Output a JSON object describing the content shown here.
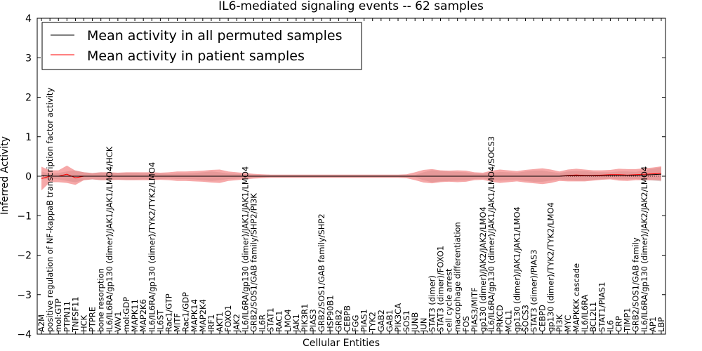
{
  "chart_data": {
    "type": "line",
    "title": "IL6-mediated signaling events -- 62 samples",
    "xlabel": "Cellular Entities",
    "ylabel": "Inferred Activity",
    "ylim": [
      -4,
      4
    ],
    "yticks": [
      -4,
      -3,
      -2,
      -1,
      0,
      1,
      2,
      3,
      4
    ],
    "ytick_labels": [
      "−4",
      "−3",
      "−2",
      "−1",
      "0",
      "1",
      "2",
      "3",
      "4"
    ],
    "legend_position": "upper-left",
    "categories": [
      "A2M",
      "positive regulation of NF-kappaB transcription factor activity",
      "mol:GTP",
      "PTPN11",
      "TNFSF11",
      "HCK",
      "PTPRE",
      "bone resorption",
      "IL6/IL6RA/gp130 (dimer)/JAK1/JAK1/LMO4/HCK",
      "VAV1",
      "mol:GDP",
      "MAPK11",
      "MAP2K6",
      "IL6/IL6RA/gp130 (dimer)/TYK2/TYK2/LMO4",
      "IL6ST",
      "Rac1/GTP",
      "MITF",
      "Rac1/GDP",
      "MAPK14",
      "MAP2K4",
      "IRF1",
      "AKT1",
      "FOXO1",
      "JAK2",
      "IL6/IL6RA/gp130 (dimer)/JAK1/JAK1/LMO4",
      "GRB2/SOS1/GAB family/SHP2/PI3K",
      "IL6R",
      "STAT1",
      "RAC1",
      "LMO4",
      "JAK1",
      "PIK3R1",
      "PIAS3",
      "GRB2/SOS1/GAB family/SHP2",
      "HSP90B1",
      "GRB2",
      "CEBPB",
      "FGG",
      "PIAS1",
      "TYK2",
      "GAB2",
      "GAB1",
      "PIK3CA",
      "SOS1",
      "JUNB",
      "JUN",
      "STAT3 (dimer)",
      "STAT3 (dimer)/FOXO1",
      "cell cycle arrest",
      "macrophage differentiation",
      "FOS",
      "PIAS3/MITF",
      "gp130 (dimer)/JAK2/JAK2/LMO4",
      "IL6/IL6RA/gp130 (dimer)/JAK1/JAK1/LMO4/SOCS3",
      "PRKCD",
      "MCL1",
      "gp130 (dimer)/JAK1/JAK1/LMO4",
      "SOCS3",
      "STAT3 (dimer)/PIAS3",
      "CEBPD",
      "gp130 (dimer)/TYK2/TYK2/LMO4",
      "PI3K",
      "MYC",
      "MAPKKK cascade",
      "IL6/IL6RA",
      "BCL2L1",
      "STAT1/PIAS1",
      "IL6",
      "CRP",
      "TIMP1",
      "GRB2/SOS1/GAB family",
      "IL6/IL6RA/gp130 (dimer)/JAK2/JAK2/LMO4",
      "AP1",
      "LBP"
    ],
    "series": [
      {
        "name": "Mean activity in all permuted samples",
        "color": "#000000",
        "band_color": "#bbbbbb",
        "values": [
          0.02,
          0.0,
          0.0,
          0.0,
          0.0,
          0.0,
          0.0,
          0.0,
          0.0,
          0.0,
          0.0,
          0.0,
          0.0,
          0.0,
          0.0,
          0.0,
          0.0,
          0.0,
          0.0,
          0.0,
          0.0,
          0.0,
          0.0,
          0.0,
          0.0,
          0.0,
          0.0,
          0.0,
          0.0,
          0.0,
          0.0,
          0.0,
          0.0,
          0.0,
          0.0,
          0.0,
          0.0,
          0.0,
          0.0,
          0.0,
          0.0,
          0.0,
          0.0,
          0.0,
          0.0,
          0.0,
          0.0,
          0.0,
          0.0,
          0.0,
          0.0,
          0.0,
          0.0,
          0.0,
          0.0,
          0.0,
          0.0,
          0.0,
          0.0,
          0.0,
          0.0,
          0.0,
          0.01,
          0.01,
          0.01,
          0.01,
          0.01,
          0.02,
          0.02,
          0.02,
          0.02,
          0.03,
          0.04,
          0.05
        ],
        "spread": [
          0.1,
          0.06,
          0.08,
          0.12,
          0.15,
          0.1,
          0.08,
          0.1,
          0.09,
          0.09,
          0.09,
          0.09,
          0.08,
          0.09,
          0.07,
          0.06,
          0.07,
          0.07,
          0.08,
          0.1,
          0.12,
          0.1,
          0.07,
          0.06,
          0.05,
          0.04,
          0.03,
          0.03,
          0.03,
          0.03,
          0.03,
          0.03,
          0.03,
          0.03,
          0.03,
          0.03,
          0.03,
          0.03,
          0.03,
          0.03,
          0.03,
          0.03,
          0.03,
          0.03,
          0.03,
          0.1,
          0.15,
          0.13,
          0.12,
          0.11,
          0.1,
          0.07,
          0.06,
          0.09,
          0.11,
          0.1,
          0.09,
          0.12,
          0.14,
          0.14,
          0.11,
          0.08,
          0.11,
          0.12,
          0.12,
          0.1,
          0.09,
          0.08,
          0.1,
          0.1,
          0.09,
          0.12,
          0.15,
          0.18
        ]
      },
      {
        "name": "Mean activity in patient samples",
        "color": "#ff0000",
        "band_color": "#ee6060",
        "values": [
          -0.06,
          0.0,
          0.0,
          0.05,
          -0.04,
          0.0,
          0.0,
          0.0,
          0.0,
          0.0,
          0.0,
          0.0,
          0.0,
          0.0,
          0.0,
          0.0,
          0.0,
          0.0,
          0.0,
          0.0,
          0.0,
          0.0,
          0.0,
          0.0,
          0.0,
          0.0,
          0.0,
          0.0,
          0.0,
          0.0,
          0.0,
          0.0,
          0.0,
          0.0,
          0.0,
          0.0,
          0.0,
          0.0,
          0.0,
          0.0,
          0.0,
          0.0,
          0.0,
          0.0,
          0.0,
          0.0,
          0.0,
          0.0,
          0.0,
          0.0,
          0.0,
          0.0,
          0.0,
          0.0,
          0.0,
          0.0,
          0.0,
          0.0,
          0.0,
          0.0,
          0.0,
          0.0,
          0.02,
          0.03,
          0.02,
          0.02,
          0.03,
          0.04,
          0.04,
          0.03,
          0.04,
          0.05,
          0.06,
          0.07
        ],
        "spread": [
          0.3,
          0.15,
          0.15,
          0.22,
          0.18,
          0.1,
          0.08,
          0.1,
          0.1,
          0.09,
          0.1,
          0.1,
          0.1,
          0.1,
          0.09,
          0.1,
          0.12,
          0.12,
          0.13,
          0.14,
          0.16,
          0.17,
          0.12,
          0.1,
          0.08,
          0.06,
          0.05,
          0.04,
          0.04,
          0.04,
          0.04,
          0.04,
          0.04,
          0.04,
          0.04,
          0.04,
          0.04,
          0.04,
          0.04,
          0.04,
          0.04,
          0.04,
          0.04,
          0.05,
          0.1,
          0.16,
          0.18,
          0.15,
          0.14,
          0.15,
          0.14,
          0.1,
          0.09,
          0.14,
          0.17,
          0.15,
          0.13,
          0.16,
          0.18,
          0.2,
          0.17,
          0.12,
          0.15,
          0.16,
          0.15,
          0.13,
          0.12,
          0.12,
          0.15,
          0.15,
          0.14,
          0.15,
          0.16,
          0.18
        ]
      }
    ]
  }
}
